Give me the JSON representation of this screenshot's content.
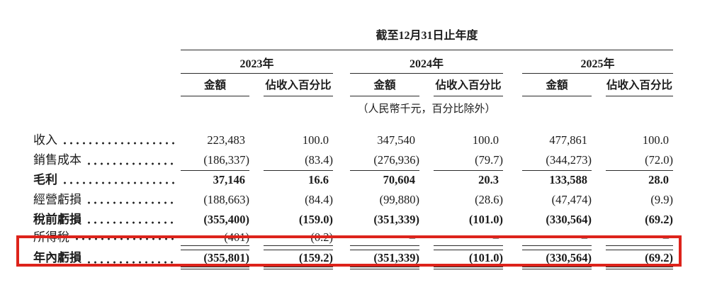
{
  "table": {
    "period_header": "截至12月31日止年度",
    "unit_note": "（人民幣千元，百分比除外）",
    "year_groups": [
      {
        "year": "2023年",
        "columns": [
          "金額",
          "佔收入百分比"
        ]
      },
      {
        "year": "2024年",
        "columns": [
          "金額",
          "佔收入百分比"
        ]
      },
      {
        "year": "2025年",
        "columns": [
          "金額",
          "佔收入百分比"
        ]
      }
    ],
    "rows": [
      {
        "label": "收入",
        "bold": false,
        "rule_below": false,
        "values": [
          "223,483",
          "100.0",
          "347,540",
          "100.0",
          "477,861",
          "100.0"
        ]
      },
      {
        "label": "銷售成本",
        "bold": false,
        "rule_below": true,
        "values": [
          "(186,337)",
          "(83.4)",
          "(276,936)",
          "(79.7)",
          "(344,273)",
          "(72.0)"
        ]
      },
      {
        "label": "毛利",
        "bold": true,
        "rule_below": false,
        "values": [
          "37,146",
          "16.6",
          "70,604",
          "20.3",
          "133,588",
          "28.0"
        ]
      },
      {
        "label": "經營虧損",
        "bold": false,
        "rule_below": false,
        "values": [
          "(188,663)",
          "(84.4)",
          "(99,880)",
          "(28.6)",
          "(47,474)",
          "(9.9)"
        ]
      },
      {
        "label": "稅前虧損",
        "bold": true,
        "rule_below": false,
        "values": [
          "(355,400)",
          "(159.0)",
          "(351,339)",
          "(101.0)",
          "(330,564)",
          "(69.2)"
        ]
      },
      {
        "label": "所得稅",
        "bold": false,
        "rule_below": true,
        "short": true,
        "spacer_rule_below": true,
        "values": [
          "(401)",
          "(0.2)",
          "–",
          "–",
          "–",
          "–"
        ]
      },
      {
        "label": "年內虧損",
        "bold": true,
        "rule_below": false,
        "highlighted": true,
        "double_underline": true,
        "values": [
          "(355,801)",
          "(159.2)",
          "(351,339)",
          "(101.0)",
          "(330,564)",
          "(69.2)"
        ]
      }
    ],
    "highlight_color": "#dd231b"
  }
}
